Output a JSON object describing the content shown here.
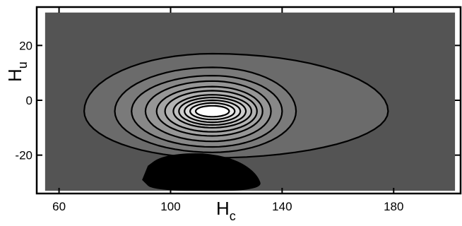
{
  "chart_data": {
    "type": "contour",
    "xlabel": "H",
    "xlabel_sub": "c",
    "ylabel": "H",
    "ylabel_sub": "u",
    "xlim": [
      52,
      204
    ],
    "ylim": [
      -34,
      34
    ],
    "xticks": [
      60,
      100,
      140,
      180
    ],
    "yticks": [
      -20,
      0,
      20
    ],
    "xtick_labels": [
      "60",
      "100",
      "140",
      "180"
    ],
    "ytick_labels": [
      "-20",
      "0",
      "20"
    ],
    "data_extent": {
      "x": [
        55,
        202
      ],
      "y": [
        -33,
        32
      ]
    },
    "background_level_color": "#545454",
    "peak": {
      "x": 115,
      "y": -4
    },
    "contour_levels": [
      {
        "level": 1,
        "x_range": [
          69,
          178
        ],
        "y_range": [
          -21,
          17
        ],
        "color": "#6b6b6b"
      },
      {
        "level": 2,
        "x_range": [
          80,
          145
        ],
        "y_range": [
          -19,
          12
        ],
        "color": "#7a7a7a"
      },
      {
        "level": 3,
        "x_range": [
          86,
          140
        ],
        "y_range": [
          -17,
          9
        ],
        "color": "#888888"
      },
      {
        "level": 4,
        "x_range": [
          91,
          136
        ],
        "y_range": [
          -15,
          7
        ],
        "color": "#969696"
      },
      {
        "level": 5,
        "x_range": [
          95,
          133
        ],
        "y_range": [
          -13,
          5
        ],
        "color": "#a4a4a4"
      },
      {
        "level": 6,
        "x_range": [
          98,
          131
        ],
        "y_range": [
          -11.5,
          3.5
        ],
        "color": "#b2b2b2"
      },
      {
        "level": 7,
        "x_range": [
          101,
          129
        ],
        "y_range": [
          -10,
          2
        ],
        "color": "#c0c0c0"
      },
      {
        "level": 8,
        "x_range": [
          103,
          127
        ],
        "y_range": [
          -9,
          1
        ],
        "color": "#cecece"
      },
      {
        "level": 9,
        "x_range": [
          105,
          125
        ],
        "y_range": [
          -8,
          0
        ],
        "color": "#dcdcdc"
      },
      {
        "level": 10,
        "x_range": [
          107,
          123
        ],
        "y_range": [
          -7,
          -1
        ],
        "color": "#e9e9e9"
      },
      {
        "level": 11,
        "x_range": [
          109,
          121
        ],
        "y_range": [
          -6,
          -2
        ],
        "color": "#ffffff"
      }
    ],
    "minimum_region": {
      "color": "#000000",
      "points": [
        [
          92,
          -24
        ],
        [
          96,
          -21
        ],
        [
          104,
          -19.5
        ],
        [
          114,
          -19.5
        ],
        [
          124,
          -22
        ],
        [
          131,
          -27
        ],
        [
          133,
          -33
        ],
        [
          94,
          -33
        ],
        [
          90,
          -29
        ]
      ]
    }
  }
}
